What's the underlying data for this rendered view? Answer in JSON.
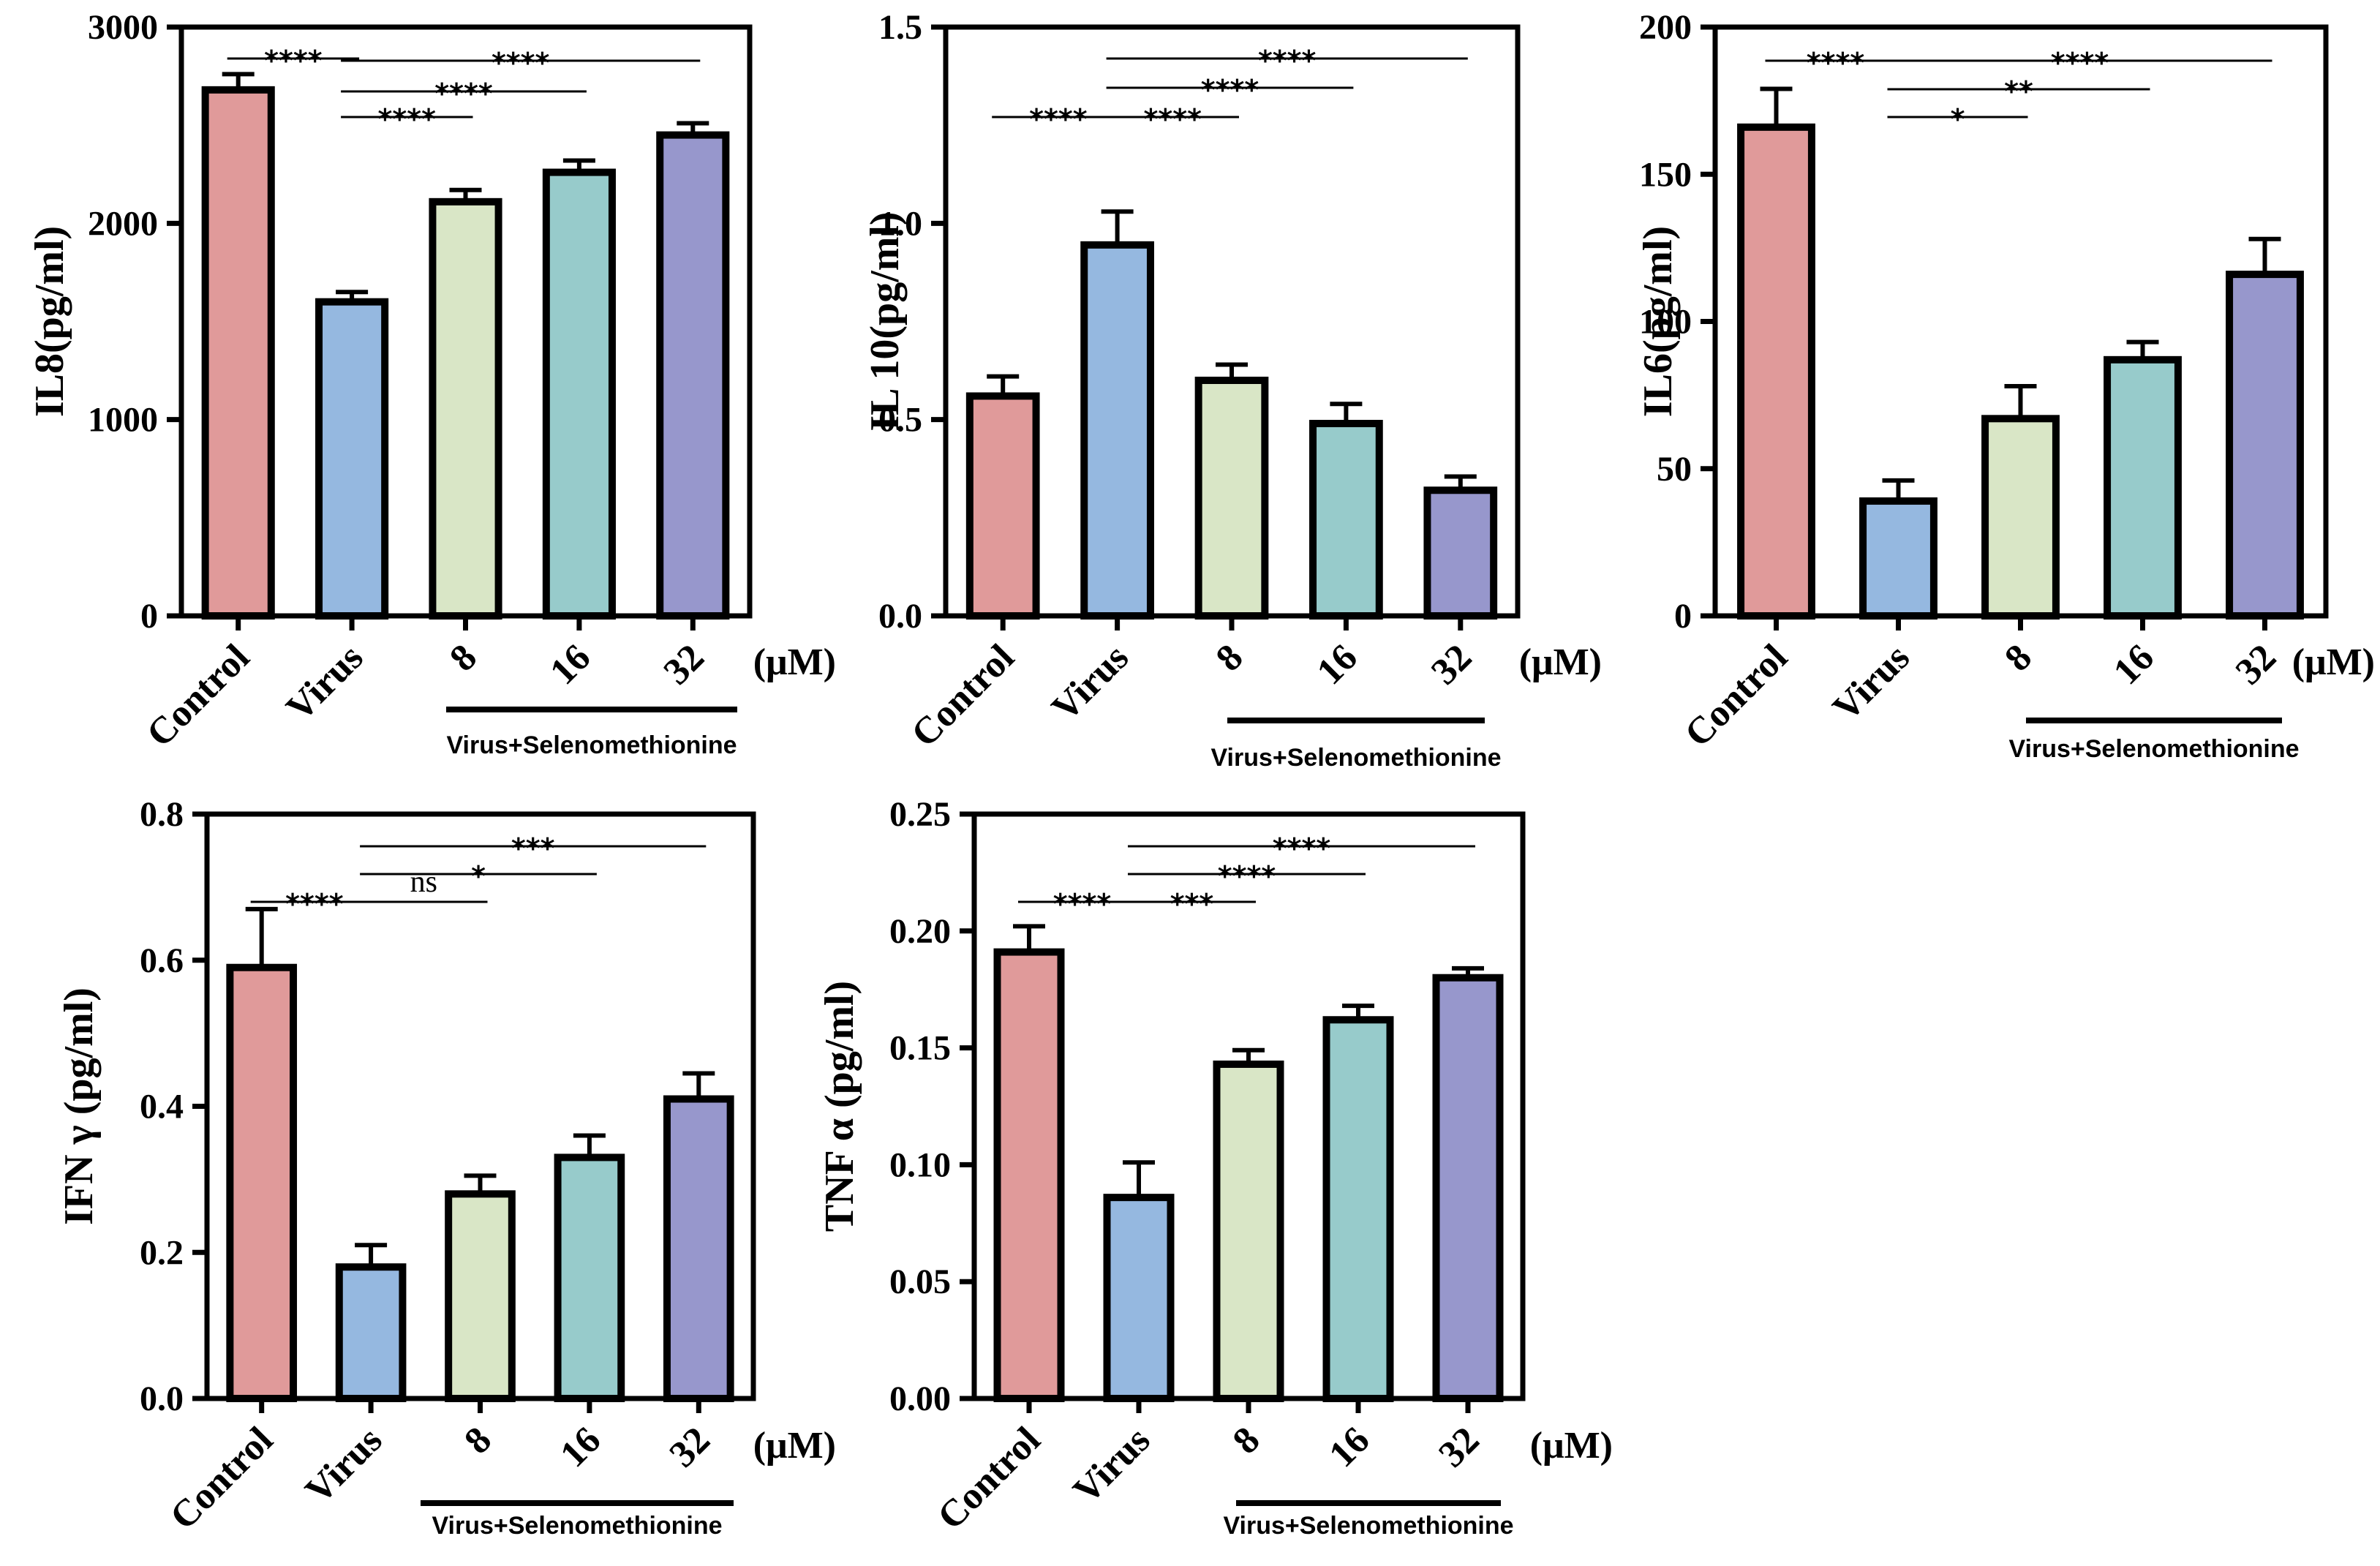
{
  "chart_data": [
    {
      "type": "bar",
      "title": "",
      "ylabel": "IL8(pg/ml)",
      "ylim": [
        0,
        3000
      ],
      "yticks": [
        0,
        1000,
        2000,
        3000
      ],
      "ytick_labels": [
        "0",
        "1000",
        "2000",
        "3000"
      ],
      "categories": [
        "Control",
        "Virus",
        "8",
        "16",
        "32"
      ],
      "unit": "(μM)",
      "group_label": "Virus+Selenomethionine",
      "values": [
        2680,
        1600,
        2110,
        2260,
        2450
      ],
      "errors": [
        80,
        50,
        60,
        60,
        60
      ],
      "colors": [
        "#e09a9a",
        "#95b8e0",
        "#d9e6c6",
        "#97cbcb",
        "#9797cc"
      ],
      "significance": [
        {
          "from": 0,
          "to": 1,
          "label": "****"
        },
        {
          "from": 1,
          "to": 4,
          "label": "****"
        },
        {
          "from": 1,
          "to": 3,
          "label": "****"
        },
        {
          "from": 1,
          "to": 2,
          "label": "****"
        }
      ]
    },
    {
      "type": "bar",
      "title": "",
      "ylabel": "IL 10(pg/ml)",
      "ylim": [
        0,
        1.5
      ],
      "yticks": [
        0,
        0.5,
        1.0,
        1.5
      ],
      "ytick_labels": [
        "0.0",
        "0.5",
        "1.0",
        "1.5"
      ],
      "categories": [
        "Control",
        "Virus",
        "8",
        "16",
        "32"
      ],
      "unit": "(μM)",
      "group_label": "Virus+Selenomethionine",
      "values": [
        0.56,
        0.945,
        0.6,
        0.49,
        0.32
      ],
      "errors": [
        0.05,
        0.085,
        0.04,
        0.05,
        0.035
      ],
      "colors": [
        "#e09a9a",
        "#95b8e0",
        "#d9e6c6",
        "#97cbcb",
        "#9797cc"
      ],
      "significance": [
        {
          "from": 1,
          "to": 4,
          "label": "****"
        },
        {
          "from": 1,
          "to": 3,
          "label": "****"
        },
        {
          "from": 0,
          "to": 1,
          "label": "****"
        },
        {
          "from": 1,
          "to": 2,
          "label": "****"
        }
      ]
    },
    {
      "type": "bar",
      "title": "",
      "ylabel": "IL6(pg/ml)",
      "ylim": [
        0,
        200
      ],
      "yticks": [
        0,
        50,
        100,
        150,
        200
      ],
      "ytick_labels": [
        "0",
        "50",
        "100",
        "150",
        "200"
      ],
      "categories": [
        "Control",
        "Virus",
        "8",
        "16",
        "32"
      ],
      "unit": "(μM)",
      "group_label": "Virus+Selenomethionine",
      "values": [
        166,
        39,
        67,
        87,
        116
      ],
      "errors": [
        13,
        7,
        11,
        6,
        12
      ],
      "colors": [
        "#e09a9a",
        "#95b8e0",
        "#d9e6c6",
        "#97cbcb",
        "#9797cc"
      ],
      "significance": [
        {
          "from": 0,
          "to": 1,
          "label": "****"
        },
        {
          "from": 1,
          "to": 4,
          "label": "****"
        },
        {
          "from": 1,
          "to": 3,
          "label": "**"
        },
        {
          "from": 1,
          "to": 2,
          "label": "*"
        }
      ]
    },
    {
      "type": "bar",
      "title": "",
      "ylabel": "IFN γ (pg/ml)",
      "ylim": [
        0,
        0.8
      ],
      "yticks": [
        0,
        0.2,
        0.4,
        0.6,
        0.8
      ],
      "ytick_labels": [
        "0.0",
        "0.2",
        "0.4",
        "0.6",
        "0.8"
      ],
      "categories": [
        "Control",
        "Virus",
        "8",
        "16",
        "32"
      ],
      "unit": "(μM)",
      "group_label": "Virus+Selenomethionine",
      "values": [
        0.59,
        0.18,
        0.28,
        0.33,
        0.41
      ],
      "errors": [
        0.08,
        0.03,
        0.025,
        0.03,
        0.035
      ],
      "colors": [
        "#e09a9a",
        "#95b8e0",
        "#d9e6c6",
        "#97cbcb",
        "#9797cc"
      ],
      "significance": [
        {
          "from": 1,
          "to": 4,
          "label": "***"
        },
        {
          "from": 1,
          "to": 3,
          "label": "*"
        },
        {
          "from": 0,
          "to": 1,
          "label": "****"
        },
        {
          "from": 1,
          "to": 2,
          "label": "ns"
        }
      ]
    },
    {
      "type": "bar",
      "title": "",
      "ylabel": "TNF α (pg/ml)",
      "ylim": [
        0,
        0.25
      ],
      "yticks": [
        0,
        0.05,
        0.1,
        0.15,
        0.2,
        0.25
      ],
      "ytick_labels": [
        "0.00",
        "0.05",
        "0.10",
        "0.15",
        "0.20",
        "0.25"
      ],
      "categories": [
        "Control",
        "Virus",
        "8",
        "16",
        "32"
      ],
      "unit": "(μM)",
      "group_label": "Virus+Selenomethionine",
      "values": [
        0.191,
        0.086,
        0.143,
        0.162,
        0.18
      ],
      "errors": [
        0.011,
        0.015,
        0.006,
        0.006,
        0.004
      ],
      "colors": [
        "#e09a9a",
        "#95b8e0",
        "#d9e6c6",
        "#97cbcb",
        "#9797cc"
      ],
      "significance": [
        {
          "from": 1,
          "to": 4,
          "label": "****"
        },
        {
          "from": 1,
          "to": 3,
          "label": "****"
        },
        {
          "from": 0,
          "to": 1,
          "label": "****"
        },
        {
          "from": 1,
          "to": 2,
          "label": "***"
        }
      ]
    }
  ]
}
